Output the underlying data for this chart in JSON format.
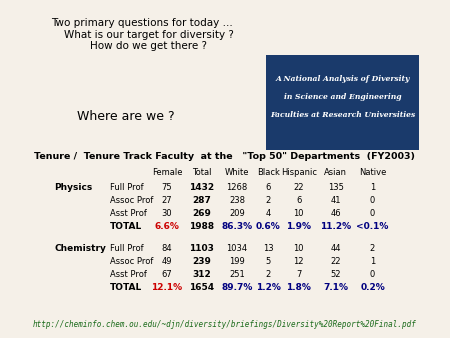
{
  "title_questions": "Two primary questions for today …\n    What is our target for diversity ?\n    How do we get there ?",
  "where_text": "Where are we ?",
  "table_title": "Tenure /  Tenure Track Faculty  at the   \"Top 50\" Departments  (FY2003)",
  "col_headers": [
    "Female",
    "Total",
    "White",
    "Black",
    "Hispanic",
    "Asian",
    "Native"
  ],
  "physics_rows": [
    {
      "label": "Full Prof",
      "female": "75",
      "total": "1432",
      "white": "1268",
      "black": "6",
      "hispanic": "22",
      "asian": "135",
      "native": "1"
    },
    {
      "label": "Assoc Prof",
      "female": "27",
      "total": "287",
      "white": "238",
      "black": "2",
      "hispanic": "6",
      "asian": "41",
      "native": "0"
    },
    {
      "label": "Asst Prof",
      "female": "30",
      "total": "269",
      "white": "209",
      "black": "4",
      "hispanic": "10",
      "asian": "46",
      "native": "0"
    }
  ],
  "physics_total": {
    "label": "TOTAL",
    "female": "6.6%",
    "total": "1988",
    "white": "86.3%",
    "black": "0.6%",
    "hispanic": "1.9%",
    "asian": "11.2%",
    "native": "<0.1%"
  },
  "chemistry_rows": [
    {
      "label": "Full Prof",
      "female": "84",
      "total": "1103",
      "white": "1034",
      "black": "13",
      "hispanic": "10",
      "asian": "44",
      "native": "2"
    },
    {
      "label": "Assoc Prof",
      "female": "49",
      "total": "239",
      "white": "199",
      "black": "5",
      "hispanic": "12",
      "asian": "22",
      "native": "1"
    },
    {
      "label": "Asst Prof",
      "female": "67",
      "total": "312",
      "white": "251",
      "black": "2",
      "hispanic": "7",
      "asian": "52",
      "native": "0"
    }
  ],
  "chemistry_total": {
    "label": "TOTAL",
    "female": "12.1%",
    "total": "1654",
    "white": "89.7%",
    "black": "1.2%",
    "hispanic": "1.8%",
    "asian": "7.1%",
    "native": "0.2%"
  },
  "url": "http://cheminfo.chem.ou.edu/~djn/diversity/briefings/Diversity%20Report%20Final.pdf",
  "box_title_line1": "A National Analysis of Diversity",
  "box_title_line2": "in Science and Engineering",
  "box_title_line3": "Faculties at Research Universities",
  "box_bg": "#1a3a6b",
  "box_text_color": "#ffffff",
  "female_color": "#cc0000",
  "total_color": "#000080",
  "percent_color_physics": "#cc0000",
  "percent_color_chem": "#cc0000",
  "bg_color": "#f5f0e8"
}
